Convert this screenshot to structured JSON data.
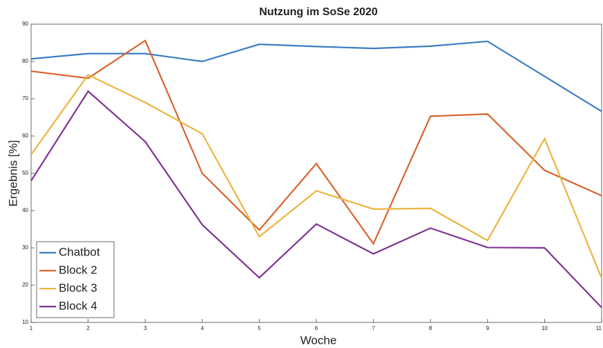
{
  "chart_data": {
    "type": "line",
    "title": "Nutzung im SoSe 2020",
    "x_label": "Woche",
    "y_label": "Ergebnis [%]",
    "x": [
      1,
      2,
      3,
      4,
      5,
      6,
      7,
      8,
      9,
      10,
      11
    ],
    "series": [
      {
        "name": "Chatbot",
        "color": "#3a7dc4",
        "values": [
          80.7,
          82.1,
          82.1,
          80,
          84.6,
          84,
          83.5,
          84.1,
          85.4,
          76,
          66.6
        ]
      },
      {
        "name": "Block 2",
        "color": "#d9622b",
        "values": [
          77.4,
          75.5,
          85.6,
          50,
          34.8,
          52.6,
          31.1,
          65.3,
          65.9,
          50.8,
          44
        ]
      },
      {
        "name": "Block 3",
        "color": "#ebb43f",
        "values": [
          55,
          76.4,
          69,
          60.6,
          33,
          45.3,
          40.4,
          40.6,
          32,
          59.3,
          21.9
        ]
      },
      {
        "name": "Block 4",
        "color": "#7e3291",
        "values": [
          48,
          72,
          58.5,
          36.2,
          22,
          36.4,
          28.4,
          35.3,
          30.1,
          30,
          14
        ]
      }
    ],
    "xlim": [
      1,
      11
    ],
    "xticks": [
      1,
      2,
      3,
      4,
      5,
      6,
      7,
      8,
      9,
      10,
      11
    ],
    "ylim": [
      10,
      90
    ],
    "yticks": [
      10,
      20,
      30,
      40,
      50,
      60,
      70,
      80,
      90
    ],
    "grid": false,
    "legend": "southwest"
  }
}
